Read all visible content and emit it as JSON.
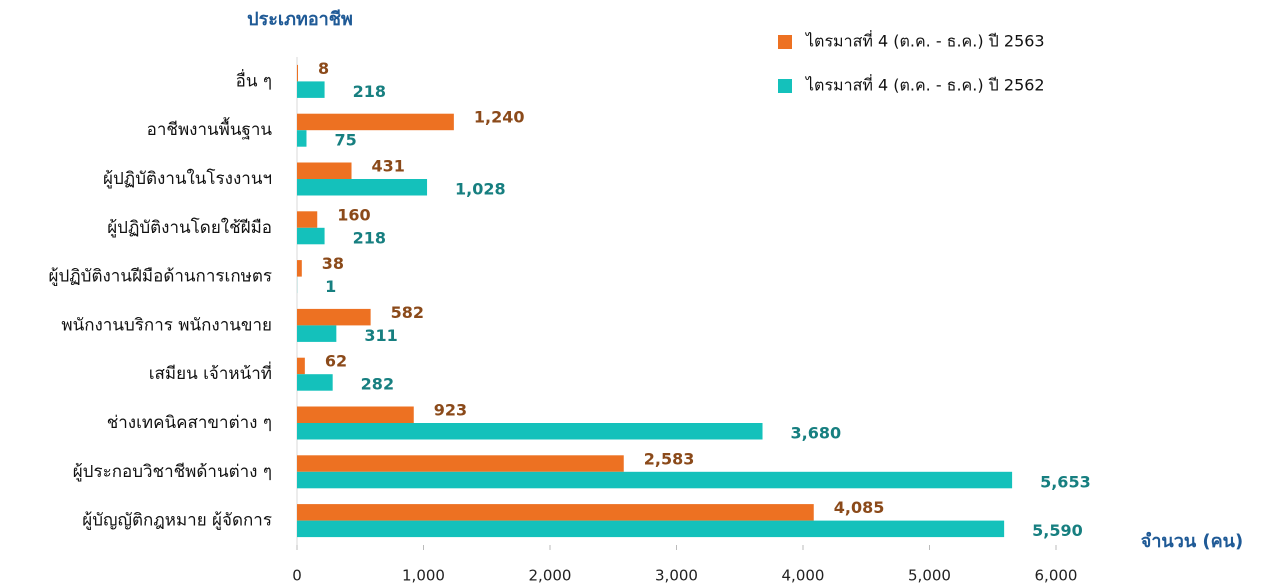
{
  "chart_data": {
    "type": "bar",
    "orientation": "horizontal",
    "y_axis_label": "ประเภทอาชีพ",
    "x_axis_label": "จำนวน (คน)",
    "categories": [
      "อื่น ๆ",
      "อาชีพงานพื้นฐาน",
      "ผู้ปฏิบัติงานในโรงงานฯ",
      "ผู้ปฏิบัติงานโดยใช้ฝีมือ",
      "ผู้ปฏิบัติงานฝีมือด้านการเกษตร",
      "พนักงานบริการ พนักงานขาย",
      "เสมียน เจ้าหน้าที่",
      "ช่างเทคนิคสาขาต่าง ๆ",
      "ผู้ประกอบวิชาชีพด้านต่าง ๆ",
      "ผู้บัญญัติกฎหมาย ผู้จัดการ"
    ],
    "series": [
      {
        "name": "ไตรมาสที่ 4 (ต.ค. - ธ.ค.) ปี 2563",
        "color": "#ed7122",
        "label_color": "#8b4a1a",
        "values": [
          8,
          1240,
          431,
          160,
          38,
          582,
          62,
          923,
          2583,
          4085
        ],
        "value_labels": [
          "8",
          "1,240",
          "431",
          "160",
          "38",
          "582",
          "62",
          "923",
          "2,583",
          "4,085"
        ]
      },
      {
        "name": "ไตรมาสที่ 4 (ต.ค. - ธ.ค.) ปี 2562",
        "color": "#14c1bb",
        "label_color": "#177f80",
        "values": [
          218,
          75,
          1028,
          218,
          1,
          311,
          282,
          3680,
          5653,
          5590
        ],
        "value_labels": [
          "218",
          "75",
          "1,028",
          "218",
          "1",
          "311",
          "282",
          "3,680",
          "5,653",
          "5,590"
        ]
      }
    ],
    "xlim": [
      0,
      6000
    ],
    "xticks": [
      0,
      {
        "value": 1000,
        "label": "1,000"
      },
      {
        "value": 2000,
        "label": "2,000"
      },
      {
        "value": 3000,
        "label": "3,000"
      },
      {
        "value": 4000,
        "label": "4,000"
      },
      {
        "value": 5000,
        "label": "5,000"
      },
      {
        "value": 6000,
        "label": "6,000"
      }
    ],
    "legend": "top-right",
    "grid": false
  }
}
